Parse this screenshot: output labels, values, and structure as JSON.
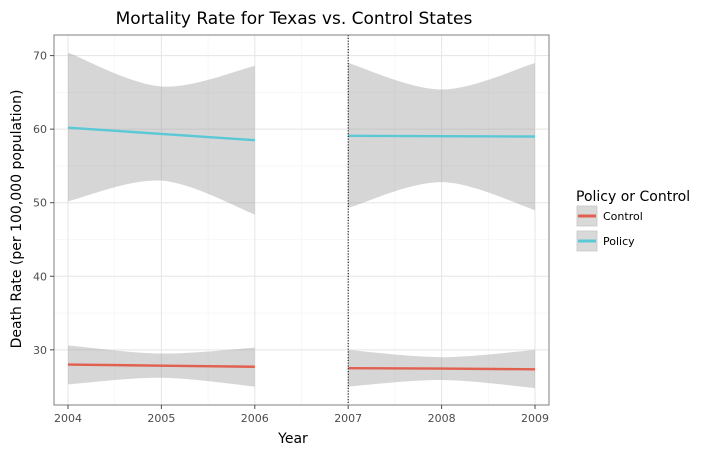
{
  "chart_data": {
    "type": "line",
    "title": "Mortality Rate for Texas vs. Control States",
    "xlabel": "Year",
    "ylabel": "Death Rate (per 100,000 population)",
    "xlim": [
      2003.85,
      2009.15
    ],
    "ylim": [
      22.5,
      72.8
    ],
    "x_ticks": [
      2004,
      2005,
      2006,
      2007,
      2008,
      2009
    ],
    "y_ticks": [
      30,
      40,
      50,
      60,
      70
    ],
    "grid": true,
    "vline": {
      "x": 2007,
      "style": "dotted"
    },
    "legend": {
      "title": "Policy or Control",
      "position": "right",
      "entries": [
        "Control",
        "Policy"
      ]
    },
    "series": [
      {
        "name": "Policy",
        "color": "#5bc8d6",
        "segments": [
          {
            "x": [
              2004,
              2005,
              2006
            ],
            "y": [
              60.2,
              59.35,
              58.5
            ],
            "lower": [
              50.2,
              53.0,
              48.4
            ],
            "upper": [
              70.4,
              65.8,
              68.6
            ]
          },
          {
            "x": [
              2007,
              2008,
              2009
            ],
            "y": [
              59.1,
              59.05,
              59.0
            ],
            "lower": [
              49.3,
              52.8,
              49.0
            ],
            "upper": [
              69.0,
              65.4,
              69.0
            ]
          }
        ]
      },
      {
        "name": "Control",
        "color": "#e1604f",
        "segments": [
          {
            "x": [
              2004,
              2005,
              2006
            ],
            "y": [
              28.0,
              27.85,
              27.7
            ],
            "lower": [
              25.3,
              26.2,
              25.0
            ],
            "upper": [
              30.6,
              29.5,
              30.3
            ]
          },
          {
            "x": [
              2007,
              2008,
              2009
            ],
            "y": [
              27.5,
              27.45,
              27.35
            ],
            "lower": [
              25.0,
              25.9,
              24.8
            ],
            "upper": [
              30.0,
              29.0,
              30.0
            ]
          }
        ]
      }
    ]
  }
}
